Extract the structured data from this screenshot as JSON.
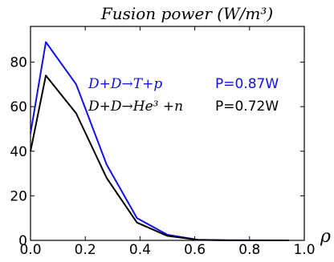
{
  "chart_data": {
    "type": "line",
    "title": "Fusion power  (W/m³)",
    "xlabel": "ρ",
    "ylabel": "",
    "xlim": [
      0.0,
      1.0
    ],
    "ylim": [
      0,
      96
    ],
    "x_ticks": [
      "0.0",
      "0.2",
      "0.4",
      "0.6",
      "0.8",
      "1.0"
    ],
    "y_ticks": [
      "0",
      "20",
      "40",
      "60",
      "80"
    ],
    "grid": false,
    "series": [
      {
        "name": "D+D→T+p",
        "color": "#1010e8",
        "value_label": "P=0.87W",
        "x": [
          0.0,
          0.056,
          0.167,
          0.278,
          0.389,
          0.5,
          0.611,
          0.722,
          0.833,
          0.944
        ],
        "y": [
          48,
          89,
          70,
          34,
          10,
          2.5,
          0.3,
          0.05,
          0.02,
          0.0
        ]
      },
      {
        "name": "D+D→He³ +n",
        "color": "#000000",
        "value_label": "P=0.72W",
        "x": [
          0.0,
          0.056,
          0.167,
          0.278,
          0.389,
          0.5,
          0.611,
          0.722,
          0.833,
          0.944
        ],
        "y": [
          40,
          74,
          57,
          28,
          8,
          2.0,
          0.2,
          0.04,
          0.01,
          0.0
        ]
      }
    ]
  }
}
